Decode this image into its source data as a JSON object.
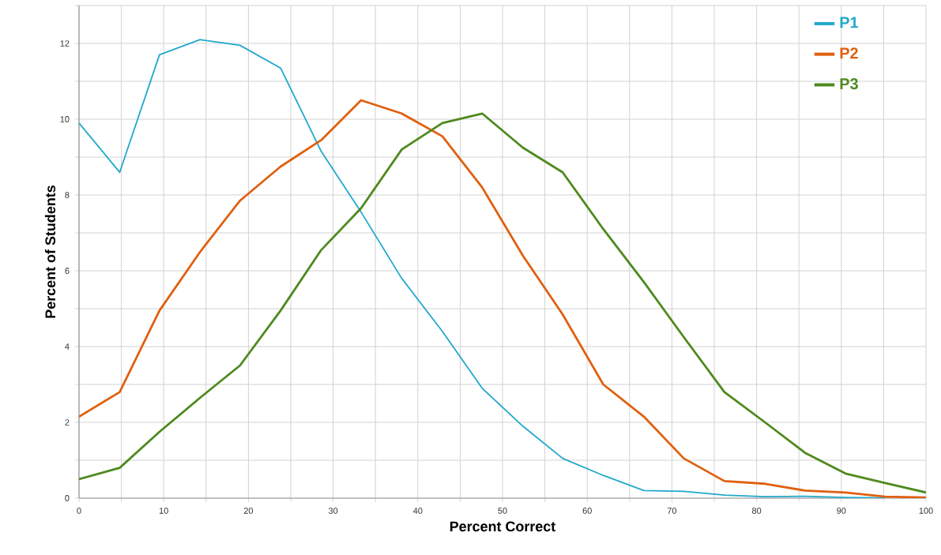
{
  "chart_data": {
    "type": "line",
    "xlabel": "Percent Correct",
    "ylabel": "Percent of Students",
    "x": [
      0,
      4.8,
      9.5,
      14.3,
      19,
      23.8,
      28.6,
      33.3,
      38.1,
      42.9,
      47.6,
      52.4,
      57.1,
      61.9,
      66.7,
      71.4,
      76.2,
      81,
      85.7,
      90.5,
      95.2,
      100
    ],
    "series": [
      {
        "name": "P1",
        "color": "#20a8cc",
        "values": [
          9.9,
          8.6,
          11.7,
          12.1,
          11.95,
          11.35,
          9.15,
          7.55,
          5.8,
          4.4,
          2.9,
          1.9,
          1.05,
          0.6,
          0.2,
          0.18,
          0.08,
          0.04,
          0.05,
          0.02,
          0.01,
          null
        ]
      },
      {
        "name": "P2",
        "color": "#e06010",
        "values": [
          2.15,
          2.8,
          4.95,
          6.5,
          7.85,
          8.75,
          9.45,
          10.5,
          10.15,
          9.55,
          8.2,
          6.4,
          4.85,
          3.0,
          2.15,
          1.05,
          0.45,
          0.38,
          0.2,
          0.15,
          0.04,
          0.02
        ]
      },
      {
        "name": "P3",
        "color": "#4e8a1e",
        "values": [
          0.5,
          0.8,
          1.75,
          2.65,
          3.5,
          4.95,
          6.55,
          7.65,
          9.2,
          9.9,
          10.15,
          9.25,
          8.6,
          7.1,
          5.7,
          4.25,
          2.8,
          2.0,
          1.2,
          0.65,
          0.4,
          0.15
        ]
      }
    ],
    "xlim": [
      0,
      100
    ],
    "xticks": [
      0,
      {
        "value": 5,
        "label": null
      },
      10,
      {
        "value": 15,
        "label": null
      },
      20,
      {
        "value": 25,
        "label": null
      },
      30,
      {
        "value": 35,
        "label": null
      },
      40,
      {
        "value": 45,
        "label": null
      },
      50,
      {
        "value": 55,
        "label": null
      },
      60,
      {
        "value": 65,
        "label": null
      },
      70,
      {
        "value": 75,
        "label": null
      },
      80,
      {
        "value": 85,
        "label": null
      },
      90,
      {
        "value": 95,
        "label": null
      },
      100
    ],
    "ylim": [
      0,
      13
    ],
    "yticks": [
      0,
      {
        "value": 1,
        "label": null
      },
      2,
      {
        "value": 3,
        "label": null
      },
      4,
      {
        "value": 5,
        "label": null
      },
      6,
      {
        "value": 7,
        "label": null
      },
      8,
      {
        "value": 9,
        "label": null
      },
      10,
      {
        "value": 11,
        "label": null
      },
      12,
      {
        "value": 13,
        "label": null
      }
    ],
    "grid": true,
    "legend": "top right",
    "marker": "none",
    "line_style": "solid"
  }
}
